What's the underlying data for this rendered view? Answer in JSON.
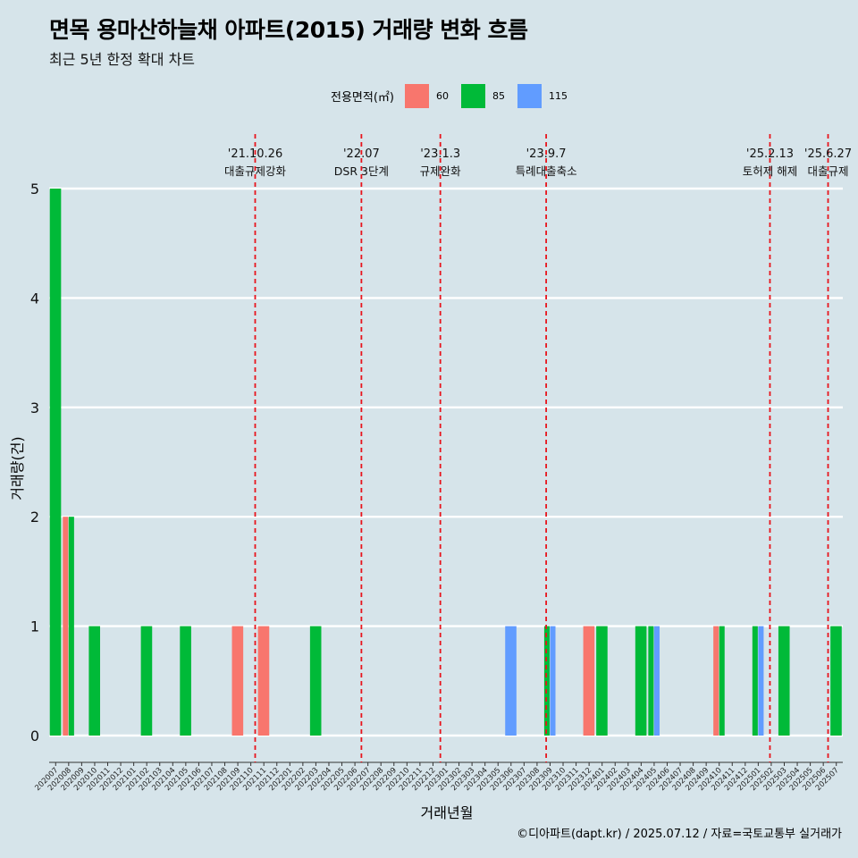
{
  "title": "면목 용마산하늘채 아파트(2015) 거래량 변화 흐름",
  "subtitle": "최근 5년 한정 확대 차트",
  "caption": "©디아파트(dapt.kr) / 2025.07.12 / 자료=국토교통부 실거래가",
  "legend": {
    "title": "전용면적(㎡)",
    "items": [
      {
        "label": "60",
        "color": "#f8766d"
      },
      {
        "label": "85",
        "color": "#00ba38"
      },
      {
        "label": "115",
        "color": "#619cff"
      }
    ]
  },
  "chart_data": {
    "type": "bar",
    "stacked": false,
    "xlabel": "거래년월",
    "ylabel": "거래량(건)",
    "ylim": [
      0,
      5
    ],
    "yticks": [
      0,
      1,
      2,
      3,
      4,
      5
    ],
    "grid": true,
    "legend_position": "top",
    "categories": [
      "202007",
      "202008",
      "202009",
      "202010",
      "202011",
      "202012",
      "202101",
      "202102",
      "202103",
      "202104",
      "202105",
      "202106",
      "202107",
      "202108",
      "202109",
      "202110",
      "202111",
      "202112",
      "202201",
      "202202",
      "202203",
      "202204",
      "202205",
      "202206",
      "202207",
      "202208",
      "202209",
      "202210",
      "202211",
      "202212",
      "202301",
      "202302",
      "202303",
      "202304",
      "202305",
      "202306",
      "202307",
      "202308",
      "202309",
      "202310",
      "202311",
      "202312",
      "202401",
      "202402",
      "202403",
      "202404",
      "202405",
      "202406",
      "202407",
      "202408",
      "202409",
      "202410",
      "202411",
      "202412",
      "202501",
      "202502",
      "202503",
      "202504",
      "202505",
      "202506",
      "202507"
    ],
    "series": [
      {
        "name": "60",
        "color": "#f8766d",
        "values": [
          0,
          2,
          0,
          0,
          0,
          0,
          0,
          0,
          0,
          0,
          0,
          0,
          0,
          0,
          1,
          0,
          1,
          0,
          0,
          0,
          0,
          0,
          0,
          0,
          0,
          0,
          0,
          0,
          0,
          0,
          0,
          0,
          0,
          0,
          0,
          0,
          0,
          0,
          0,
          0,
          0,
          1,
          0,
          0,
          0,
          0,
          0,
          0,
          0,
          0,
          0,
          1,
          0,
          0,
          0,
          0,
          0,
          0,
          0,
          0,
          0
        ]
      },
      {
        "name": "85",
        "color": "#00ba38",
        "values": [
          5,
          2,
          0,
          1,
          0,
          0,
          0,
          1,
          0,
          0,
          1,
          0,
          0,
          0,
          0,
          0,
          0,
          0,
          0,
          0,
          1,
          0,
          0,
          0,
          0,
          0,
          0,
          0,
          0,
          0,
          0,
          0,
          0,
          0,
          0,
          0,
          0,
          0,
          1,
          0,
          0,
          0,
          1,
          0,
          0,
          1,
          1,
          0,
          0,
          0,
          0,
          1,
          0,
          0,
          1,
          0,
          1,
          0,
          0,
          0,
          1
        ]
      },
      {
        "name": "115",
        "color": "#619cff",
        "values": [
          0,
          0,
          0,
          0,
          0,
          0,
          0,
          0,
          0,
          0,
          0,
          0,
          0,
          0,
          0,
          0,
          0,
          0,
          0,
          0,
          0,
          0,
          0,
          0,
          0,
          0,
          0,
          0,
          0,
          0,
          0,
          0,
          0,
          0,
          0,
          1,
          0,
          0,
          1,
          0,
          0,
          0,
          0,
          0,
          0,
          0,
          1,
          0,
          0,
          0,
          0,
          0,
          0,
          0,
          1,
          0,
          0,
          0,
          0,
          0,
          0
        ]
      }
    ],
    "annotations": [
      {
        "date": "'21.10.26",
        "label": "대출규제강화",
        "month": "202110",
        "day": 26
      },
      {
        "date": "'22.07",
        "label": "DSR 3단계",
        "month": "202207",
        "day": 1
      },
      {
        "date": "'23.1.3",
        "label": "규제완화",
        "month": "202301",
        "day": 3
      },
      {
        "date": "'23.9.7",
        "label": "특례대출축소",
        "month": "202309",
        "day": 7
      },
      {
        "date": "'25.2.13",
        "label": "토허제 해제",
        "month": "202502",
        "day": 13
      },
      {
        "date": "'25.6.27",
        "label": "대출규제",
        "month": "202506",
        "day": 27
      }
    ]
  }
}
